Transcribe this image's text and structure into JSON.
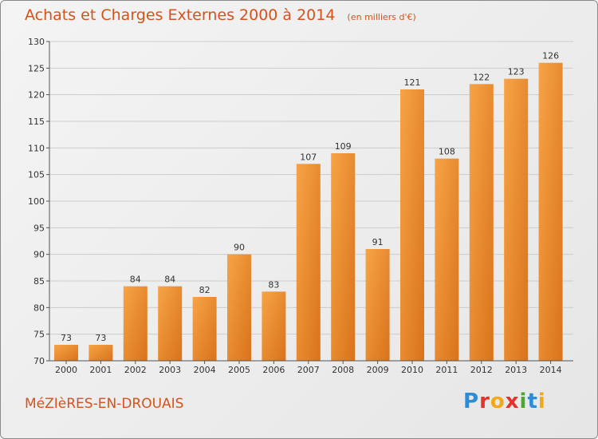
{
  "title": "Achats et Charges Externes 2000 à 2014",
  "subtitle": "(en milliers d'€)",
  "place": "MéZIèRES-EN-DROUAIS",
  "logo": {
    "text": "Proxiti",
    "colors": [
      "#2e8bd6",
      "#e8312a",
      "#f3a81a",
      "#e8312a",
      "#4aa832",
      "#2e8bd6",
      "#f3a81a"
    ]
  },
  "colors": {
    "bar_light": "#f7a347",
    "bar_dark": "#d9731a",
    "grid": "#cccccc",
    "text": "#333333",
    "accent": "#d5531a"
  },
  "chart_data": {
    "type": "bar",
    "title": "Achats et Charges Externes 2000 à 2014",
    "xlabel": "",
    "ylabel": "",
    "categories": [
      "2000",
      "2001",
      "2002",
      "2003",
      "2004",
      "2005",
      "2006",
      "2007",
      "2008",
      "2009",
      "2010",
      "2011",
      "2012",
      "2013",
      "2014"
    ],
    "values": [
      73,
      73,
      84,
      84,
      82,
      90,
      83,
      107,
      109,
      91,
      121,
      108,
      122,
      123,
      126
    ],
    "ylim": [
      70,
      130
    ],
    "yticks": [
      70,
      75,
      80,
      85,
      90,
      95,
      100,
      105,
      110,
      115,
      120,
      125,
      130
    ],
    "grid": true,
    "data_labels": true
  }
}
